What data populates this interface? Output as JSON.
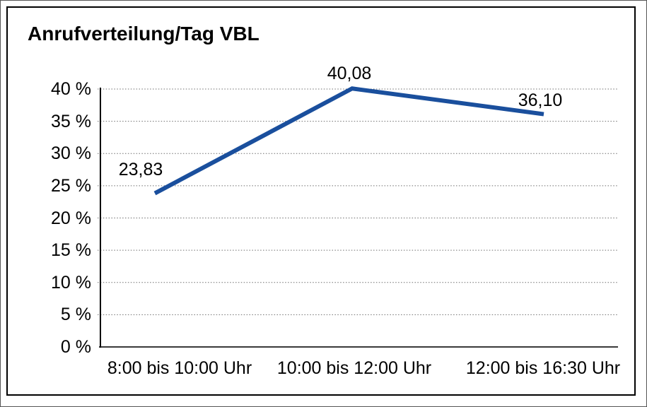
{
  "chart_data": {
    "type": "line",
    "title": "Anrufverteilung/Tag VBL",
    "categories": [
      "8:00 bis 10:00 Uhr",
      "10:00 bis 12:00 Uhr",
      "12:00 bis 16:30 Uhr"
    ],
    "values": [
      23.83,
      40.08,
      36.1
    ],
    "point_labels": [
      "23,83",
      "40,08",
      "36,10"
    ],
    "xlabel": "",
    "ylabel": "",
    "ylim": [
      0,
      40
    ],
    "y_ticks": [
      {
        "value": 0,
        "label": "0 %"
      },
      {
        "value": 5,
        "label": "5 %"
      },
      {
        "value": 10,
        "label": "10 %"
      },
      {
        "value": 15,
        "label": "15 %"
      },
      {
        "value": 20,
        "label": "20 %"
      },
      {
        "value": 25,
        "label": "25 %"
      },
      {
        "value": 30,
        "label": "30 %"
      },
      {
        "value": 35,
        "label": "35 %"
      },
      {
        "value": 40,
        "label": "40 %"
      }
    ],
    "grid": "horizontal dotted, solid baseline at 0 %",
    "legend": "none",
    "colors": {
      "line": "#1a4f9d",
      "grid": "#6e6e6e",
      "axis": "#000000",
      "baseline": "#3a3a3a",
      "text": "#000000",
      "background": "#ffffff",
      "border": "#000000"
    }
  }
}
